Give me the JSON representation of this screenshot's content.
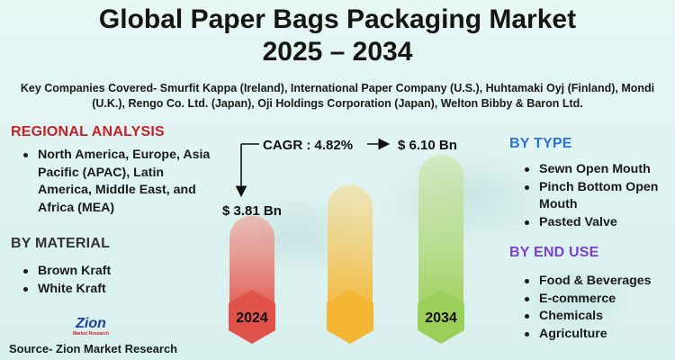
{
  "title_line1": "Global Paper Bags Packaging Market",
  "title_line2": "2025 – 2034",
  "companies": "Key Companies Covered- Smurfit Kappa (Ireland), International Paper Company (U.S.), Huhtamaki Oyj (Finland), Mondi (U.K.), Rengo Co. Ltd. (Japan), Oji Holdings Corporation (Japan), Welton Bibby & Baron Ltd.",
  "regional": {
    "heading": "REGIONAL ANALYSIS",
    "items": [
      "North America, Europe, Asia Pacific (APAC), Latin America, Middle East, and Africa (MEA)"
    ]
  },
  "material": {
    "heading": "BY MATERIAL",
    "items": [
      "Brown Kraft",
      "White Kraft"
    ]
  },
  "by_type": {
    "heading": "BY TYPE",
    "items": [
      "Sewn Open Mouth",
      "Pinch Bottom Open Mouth",
      "Pasted Valve"
    ]
  },
  "end_use": {
    "heading": "BY END USE",
    "items": [
      "Food & Beverages",
      "E-commerce",
      "Chemicals",
      "Agriculture"
    ]
  },
  "logo": {
    "name": "Zion",
    "tagline": "Market Research"
  },
  "source": "Source- Zion Market Research",
  "colors": {
    "bar_2024": "#e0534a",
    "bar_mid": "#f2b632",
    "bar_2034": "#9ccf5a",
    "regional_heading": "#c8202a",
    "type_heading": "#2f6fe0",
    "enduse_heading": "#7a3fd0"
  },
  "chart_data": {
    "type": "bar",
    "categories": [
      "2024",
      "",
      "2034"
    ],
    "values": [
      3.81,
      null,
      6.1
    ],
    "value_labels": [
      "$ 3.81 Bn",
      "",
      "$ 6.10 Bn"
    ],
    "cagr_label": "CAGR : 4.82%",
    "unit": "USD Billion"
  }
}
